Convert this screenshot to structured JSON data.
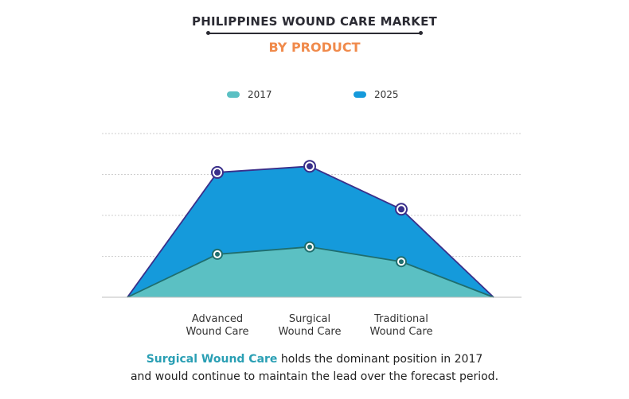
{
  "header": {
    "title": "PHILIPPINES WOUND CARE MARKET",
    "subtitle": "BY PRODUCT"
  },
  "colors": {
    "series_2017": "#5bc0c3",
    "series_2025": "#159adb",
    "line_2017": "#1f6e6e",
    "line_2025": "#3a2f8a",
    "title": "#2b2b33",
    "subtitle": "#f08a4b",
    "highlight": "#2a9fb4"
  },
  "chart_data": {
    "type": "area",
    "categories": [
      "",
      "Advanced\nWound Care",
      "Surgical\nWound Care",
      "Traditional\nWound Care",
      ""
    ],
    "series": [
      {
        "name": "2017",
        "values": [
          0,
          1.05,
          1.23,
          0.87,
          0
        ]
      },
      {
        "name": "2025",
        "values": [
          0,
          3.05,
          3.2,
          2.15,
          0
        ]
      }
    ],
    "ylim": [
      0,
      4
    ],
    "grid": true,
    "legend": "top-center",
    "xlabel": "",
    "ylabel": ""
  },
  "caption": {
    "highlight": "Surgical Wound Care",
    "line1_rest": " holds the dominant position in 2017",
    "line2": "and would continue to maintain the lead over the forecast period."
  }
}
